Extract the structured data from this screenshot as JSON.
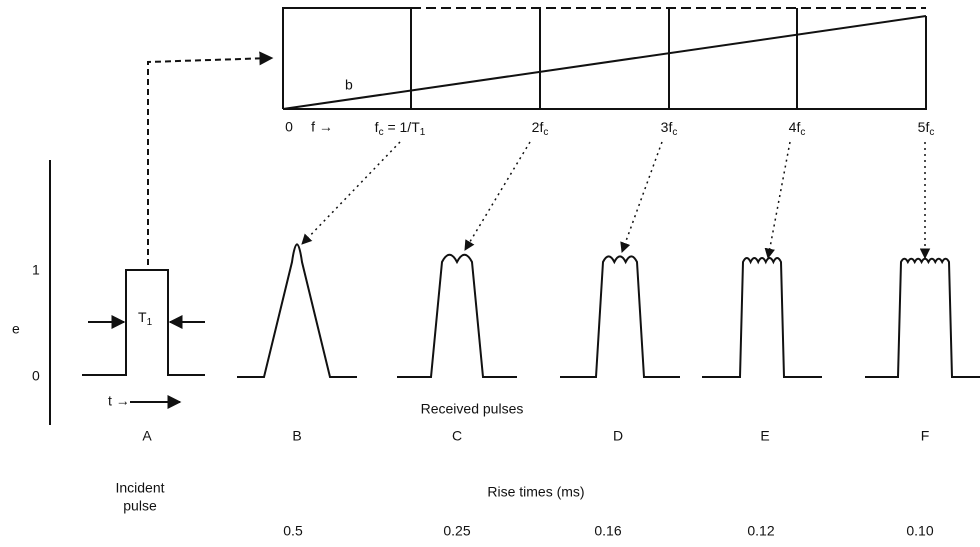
{
  "spectrum": {
    "curve": "b",
    "origin": "0",
    "f_axis": "f →",
    "harmonics": [
      [
        "f",
        "c",
        " = 1/T",
        "1"
      ],
      [
        "2f",
        "c"
      ],
      [
        "3f",
        "c"
      ],
      [
        "4f",
        "c"
      ],
      [
        "5f",
        "c"
      ]
    ]
  },
  "pulse_plot": {
    "y_axis": "e",
    "levels": [
      "1",
      "0"
    ],
    "width": [
      "T",
      "1"
    ],
    "time": "t →"
  },
  "received_label": "Received pulses",
  "pulse_labels": [
    "A",
    "B",
    "C",
    "D",
    "E",
    "F"
  ],
  "incident_label": [
    "Incident",
    "pulse"
  ],
  "rise_times_label": "Rise times (ms)",
  "rise_times": [
    "0.5",
    "0.25",
    "0.16",
    "0.12",
    "0.10"
  ]
}
